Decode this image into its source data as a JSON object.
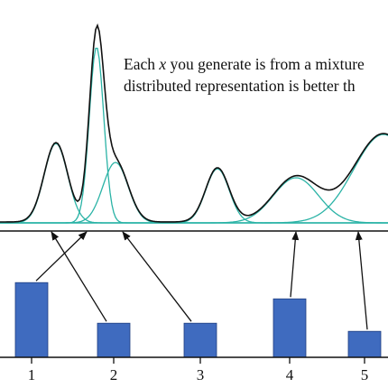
{
  "caption": {
    "line1_prefix": "Each ",
    "line1_var": "x",
    "line1_suffix": " you generate is from a mixture",
    "line2": "distributed representation is better th"
  },
  "colors": {
    "component": "#2bb3a6",
    "mixture": "#111111",
    "bar": "#3f6bbf",
    "bar_edge": "#1e3e80",
    "arrow": "#111111"
  },
  "chart_data": {
    "type": "bar",
    "categories": [
      "1",
      "2",
      "3",
      "4",
      "5"
    ],
    "values": [
      4.6,
      2.1,
      2.1,
      3.6,
      1.6
    ],
    "ylim": [
      0,
      6
    ],
    "grid": false,
    "mixture_components_per_bar": [
      [
        1,
        2
      ],
      [
        3
      ],
      [
        4
      ],
      [
        5
      ],
      [
        6
      ]
    ]
  }
}
